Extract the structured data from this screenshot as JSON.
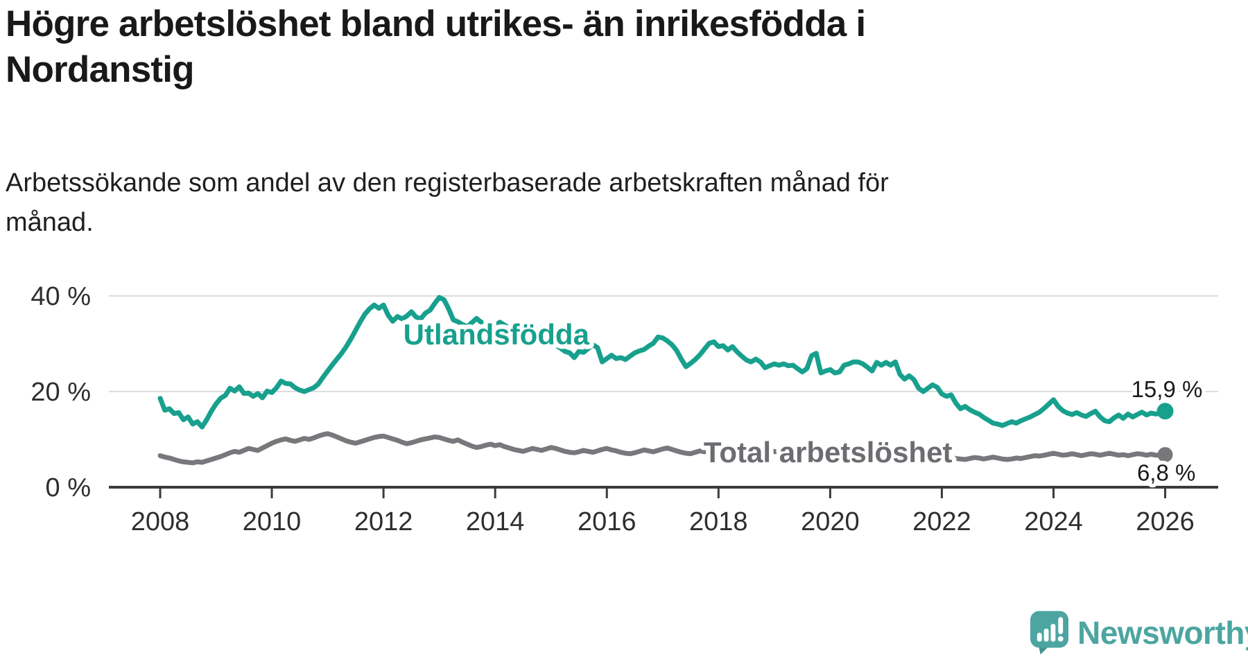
{
  "title": {
    "text": "Högre arbetslöshet bland utrikes- än inrikesfödda i Nordanstig",
    "lines": [
      "Högre arbetslöshet bland utrikes- än inrikesfödda i",
      "Nordanstig"
    ]
  },
  "subtitle": {
    "text": "Arbetssökande som andel av den registerbaserade arbetskraften månad för månad.",
    "lines": [
      "Arbetssökande som andel av den registerbaserade arbetskraften månad för",
      "månad."
    ]
  },
  "branding": {
    "logo_text": "Newsworthy",
    "logo_color": "#4CA5A0"
  },
  "colors": {
    "background": "#FFFFFF",
    "grid": "#DCDCDC",
    "axis": "#3B3B3B",
    "tick_text": "#2E2E2E",
    "title_text": "#191919",
    "subtitle_text": "#1F1F1F",
    "value_label_text": "#1A1A1A",
    "halo": "#FFFFFF"
  },
  "chart_data": {
    "type": "line",
    "title": "Högre arbetslöshet bland utrikes- än inrikesfödda i Nordanstig",
    "subtitle": "Arbetssökande som andel av den registerbaserade arbetskraften månad för månad.",
    "xlabel": "",
    "ylabel": "",
    "x_unit": "month",
    "x_range": [
      "2008-01",
      "2026-01"
    ],
    "ylim": [
      0,
      42
    ],
    "grid": "horizontal",
    "legend": "inline-labels",
    "yticks": [
      {
        "label": "0 %",
        "value": 0
      },
      {
        "label": "20 %",
        "value": 20
      },
      {
        "label": "40 %",
        "value": 40
      }
    ],
    "xticks": [
      {
        "label": "2008",
        "year": 2008
      },
      {
        "label": "2010",
        "year": 2010
      },
      {
        "label": "2012",
        "year": 2012
      },
      {
        "label": "2014",
        "year": 2014
      },
      {
        "label": "2016",
        "year": 2016
      },
      {
        "label": "2018",
        "year": 2018
      },
      {
        "label": "2020",
        "year": 2020
      },
      {
        "label": "2022",
        "year": 2022
      },
      {
        "label": "2024",
        "year": 2024
      },
      {
        "label": "2026",
        "year": 2026
      }
    ],
    "series": [
      {
        "name": "Utlandsfödda",
        "color": "#18A08E",
        "label_color": "#18A08E",
        "start_year": 2008,
        "points_per_year": 12,
        "end_value": 15.9,
        "end_label": "15,9 %",
        "label_anchor": {
          "year": 2014.02,
          "pct": 32.0
        },
        "end_label_anchor": {
          "year": 2026.03,
          "pct": 20.4
        },
        "monthly_values": [
          18.6,
          16.1,
          16.4,
          15.4,
          15.6,
          14.1,
          14.7,
          13.2,
          13.7,
          12.6,
          14.1,
          15.9,
          17.4,
          18.6,
          19.2,
          20.7,
          20.1,
          21.0,
          19.6,
          19.7,
          19.0,
          19.6,
          18.7,
          20.1,
          19.8,
          20.8,
          22.2,
          21.7,
          21.6,
          20.8,
          20.3,
          20.0,
          20.4,
          20.8,
          21.6,
          23.0,
          24.3,
          25.6,
          26.8,
          28.0,
          29.4,
          31.0,
          32.8,
          34.6,
          36.2,
          37.3,
          38.1,
          37.4,
          38.1,
          36.0,
          34.7,
          35.7,
          35.2,
          35.8,
          36.7,
          35.6,
          35.2,
          36.4,
          37.0,
          38.4,
          39.7,
          39.2,
          37.3,
          35.0,
          34.6,
          34.0,
          33.6,
          34.4,
          35.3,
          34.5,
          33.8,
          33.2,
          33.8,
          34.5,
          33.9,
          33.3,
          33.9,
          33.1,
          32.6,
          32.1,
          31.6,
          31.1,
          30.7,
          30.9,
          30.3,
          29.7,
          29.1,
          28.4,
          28.1,
          27.1,
          28.4,
          28.2,
          29.0,
          29.8,
          29.2,
          26.2,
          26.9,
          27.6,
          26.9,
          27.1,
          26.7,
          27.4,
          28.1,
          28.5,
          28.8,
          29.5,
          30.1,
          31.4,
          31.2,
          30.6,
          29.8,
          28.6,
          26.8,
          25.2,
          25.9,
          26.7,
          27.7,
          28.9,
          30.1,
          30.4,
          29.4,
          29.6,
          28.7,
          29.4,
          28.3,
          27.4,
          26.6,
          26.2,
          26.8,
          26.2,
          25.0,
          25.4,
          25.8,
          25.5,
          25.8,
          25.4,
          25.5,
          24.8,
          24.1,
          24.8,
          27.5,
          28.0,
          23.9,
          24.3,
          24.6,
          23.9,
          24.1,
          25.5,
          25.8,
          26.2,
          26.2,
          25.8,
          25.1,
          24.3,
          26.1,
          25.5,
          26.1,
          25.5,
          26.2,
          23.6,
          22.6,
          23.3,
          22.5,
          20.7,
          20.0,
          20.7,
          21.4,
          20.9,
          19.5,
          19.0,
          19.3,
          17.6,
          16.4,
          16.9,
          16.2,
          15.7,
          15.3,
          14.6,
          14.0,
          13.4,
          13.2,
          12.9,
          13.3,
          13.7,
          13.4,
          13.9,
          14.3,
          14.7,
          15.2,
          15.7,
          16.5,
          17.4,
          18.3,
          16.9,
          16.0,
          15.5,
          15.2,
          15.6,
          15.1,
          14.8,
          15.4,
          15.9,
          14.7,
          13.9,
          13.7,
          14.5,
          15.1,
          14.4,
          15.3,
          14.7,
          15.2,
          15.7,
          15.1,
          15.5,
          15.3,
          15.5,
          15.9
        ]
      },
      {
        "name": "Total arbetslöshet",
        "color": "#78787C",
        "label_color": "#6C6C71",
        "start_year": 2008,
        "points_per_year": 12,
        "end_value": 6.8,
        "end_label": "6,8 %",
        "label_anchor": {
          "year": 2019.96,
          "pct": 7.4
        },
        "end_label_anchor": {
          "year": 2026.02,
          "pct": 3.0
        },
        "monthly_values": [
          6.6,
          6.3,
          6.1,
          5.8,
          5.5,
          5.3,
          5.2,
          5.1,
          5.3,
          5.2,
          5.5,
          5.8,
          6.1,
          6.4,
          6.8,
          7.2,
          7.5,
          7.3,
          7.7,
          8.1,
          7.9,
          7.7,
          8.2,
          8.7,
          9.2,
          9.6,
          9.9,
          10.1,
          9.8,
          9.6,
          9.9,
          10.2,
          10.0,
          10.3,
          10.7,
          11.0,
          11.2,
          10.9,
          10.5,
          10.1,
          9.7,
          9.4,
          9.2,
          9.5,
          9.8,
          10.1,
          10.4,
          10.6,
          10.7,
          10.4,
          10.1,
          9.8,
          9.4,
          9.1,
          9.3,
          9.6,
          9.9,
          10.1,
          10.3,
          10.5,
          10.4,
          10.1,
          9.8,
          9.6,
          9.9,
          9.4,
          9.0,
          8.6,
          8.3,
          8.5,
          8.8,
          9.0,
          8.7,
          8.9,
          8.5,
          8.2,
          7.9,
          7.7,
          7.5,
          7.8,
          8.1,
          7.9,
          7.7,
          8.0,
          8.3,
          8.1,
          7.8,
          7.5,
          7.3,
          7.2,
          7.4,
          7.7,
          7.5,
          7.3,
          7.6,
          7.9,
          8.1,
          7.8,
          7.6,
          7.3,
          7.1,
          7.0,
          7.2,
          7.5,
          7.8,
          7.6,
          7.4,
          7.7,
          8.0,
          8.2,
          7.9,
          7.6,
          7.3,
          7.1,
          7.0,
          7.3,
          7.6,
          7.4,
          7.7,
          7.9,
          8.1,
          7.8,
          7.5,
          7.2,
          6.9,
          6.7,
          6.9,
          7.2,
          7.0,
          6.8,
          7.1,
          7.3,
          7.5,
          7.2,
          7.0,
          6.8,
          7.0,
          6.7,
          6.5,
          6.8,
          7.1,
          6.9,
          6.7,
          7.0,
          7.2,
          7.0,
          7.5,
          8.1,
          7.8,
          7.6,
          7.4,
          7.2,
          7.0,
          7.2,
          7.4,
          7.6,
          7.4,
          7.2,
          7.0,
          6.8,
          6.6,
          6.4,
          6.6,
          6.8,
          6.6,
          6.4,
          6.6,
          6.8,
          6.6,
          6.4,
          6.2,
          6.0,
          5.9,
          5.8,
          6.0,
          6.2,
          6.1,
          5.9,
          6.1,
          6.3,
          6.1,
          5.9,
          5.8,
          5.9,
          6.1,
          6.0,
          6.2,
          6.4,
          6.6,
          6.5,
          6.7,
          6.9,
          7.1,
          6.9,
          6.7,
          6.8,
          7.0,
          6.8,
          6.6,
          6.8,
          7.0,
          6.9,
          6.7,
          6.9,
          7.1,
          6.9,
          6.7,
          6.8,
          6.6,
          6.8,
          7.0,
          6.9,
          6.7,
          6.9,
          6.7,
          6.7,
          6.8
        ]
      }
    ]
  }
}
